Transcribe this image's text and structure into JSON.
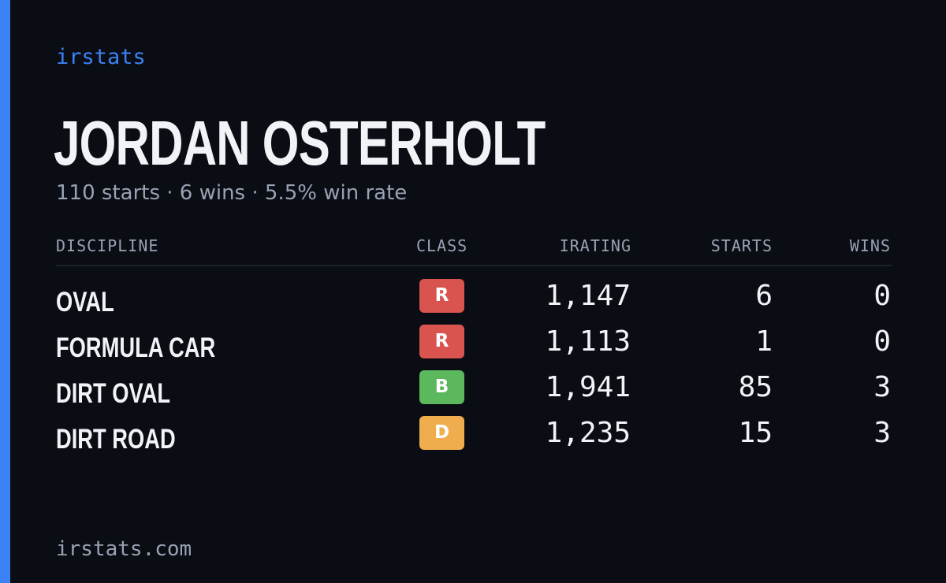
{
  "brand": "irstats",
  "driver": {
    "name": "JORDAN OSTERHOLT",
    "summary": "110 starts · 6 wins · 5.5% win rate"
  },
  "table": {
    "headers": {
      "discipline": "DISCIPLINE",
      "class": "CLASS",
      "irating": "IRATING",
      "starts": "STARTS",
      "wins": "WINS"
    },
    "rows": [
      {
        "discipline": "OVAL",
        "class": "R",
        "class_color": "#d9534f",
        "irating": "1,147",
        "starts": "6",
        "wins": "0"
      },
      {
        "discipline": "FORMULA CAR",
        "class": "R",
        "class_color": "#d9534f",
        "irating": "1,113",
        "starts": "1",
        "wins": "0"
      },
      {
        "discipline": "DIRT OVAL",
        "class": "B",
        "class_color": "#5cb85c",
        "irating": "1,941",
        "starts": "85",
        "wins": "3"
      },
      {
        "discipline": "DIRT ROAD",
        "class": "D",
        "class_color": "#f0ad4e",
        "irating": "1,235",
        "starts": "15",
        "wins": "3"
      }
    ]
  },
  "footer": "irstats.com",
  "colors": {
    "background": "#0b0d14",
    "accent": "#3b82f6",
    "text": "#f1f3f7",
    "muted": "#98a2b3"
  }
}
